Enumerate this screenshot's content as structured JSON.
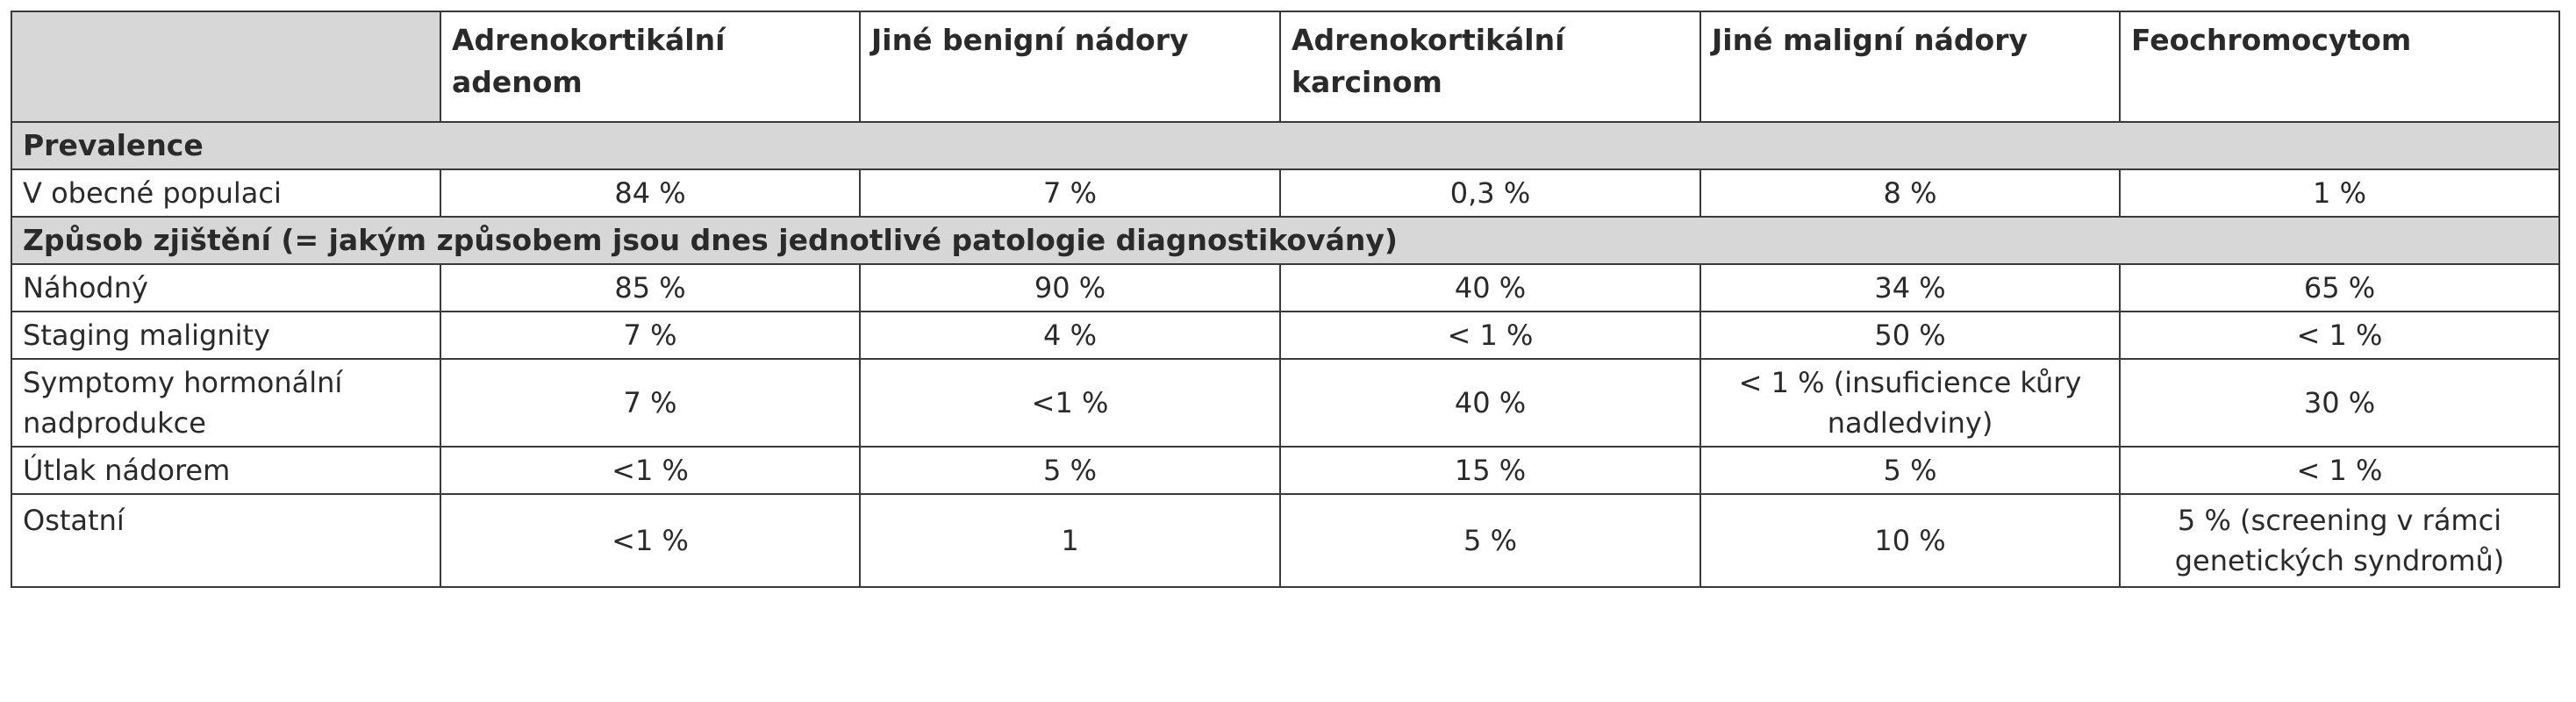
{
  "table": {
    "columns": [
      "",
      "Adrenokortikální adenom",
      "Jiné benigní nádory",
      "Adrenokortikální karcinom",
      "Jiné maligní nádory",
      "Feochromocytom"
    ],
    "sections": [
      {
        "title": "Prevalence",
        "rows": [
          {
            "label": "V obecné populaci",
            "values": [
              "84 %",
              "7 %",
              "0,3 %",
              "8 %",
              "1 %"
            ]
          }
        ]
      },
      {
        "title": "Způsob zjištění (= jakým způsobem jsou dnes jednotlivé patologie diagnostikovány)",
        "rows": [
          {
            "label": "Náhodný",
            "values": [
              "85 %",
              "90 %",
              "40 %",
              "34 %",
              "65 %"
            ]
          },
          {
            "label": "Staging malignity",
            "values": [
              "7 %",
              "4 %",
              "< 1 %",
              "50 %",
              "< 1 %"
            ]
          },
          {
            "label": "Symptomy hormonální nadprodukce",
            "values": [
              "7 %",
              "<1 %",
              "40 %",
              "< 1 % (insuficience kůry nadledviny)",
              "30 %"
            ]
          },
          {
            "label": "Útlak nádorem",
            "values": [
              "<1 %",
              "5 %",
              "15 %",
              "5 %",
              "< 1 %"
            ]
          },
          {
            "label": "Ostatní",
            "values": [
              "<1 %",
              "1",
              "5 %",
              "10 %",
              "5 % (screening v rámci genetických syndromů)"
            ]
          }
        ]
      }
    ]
  }
}
